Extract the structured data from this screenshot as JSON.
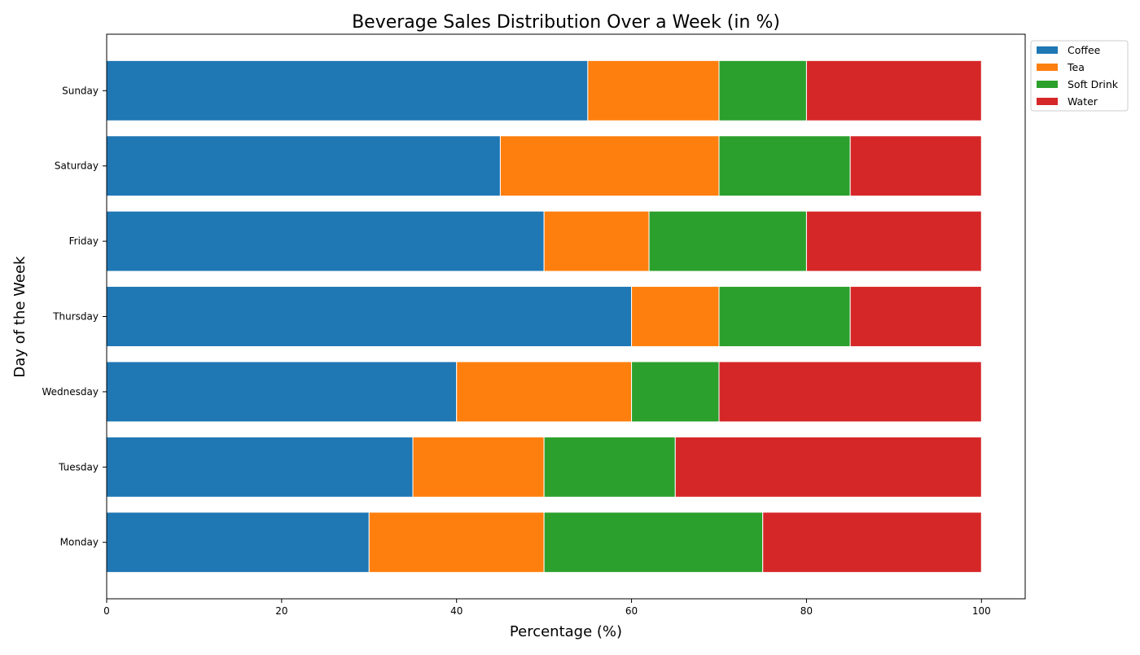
{
  "chart_data": {
    "type": "bar",
    "orientation": "horizontal",
    "stacked": true,
    "title": "Beverage Sales Distribution Over a Week (in %)",
    "xlabel": "Percentage (%)",
    "ylabel": "Day of the Week",
    "categories": [
      "Monday",
      "Tuesday",
      "Wednesday",
      "Thursday",
      "Friday",
      "Saturday",
      "Sunday"
    ],
    "series": [
      {
        "name": "Coffee",
        "color": "#1f77b4",
        "values": [
          30,
          35,
          40,
          60,
          50,
          45,
          55
        ]
      },
      {
        "name": "Tea",
        "color": "#ff7f0e",
        "values": [
          20,
          15,
          20,
          10,
          12,
          25,
          15
        ]
      },
      {
        "name": "Soft Drink",
        "color": "#2ca02c",
        "values": [
          25,
          15,
          10,
          15,
          18,
          15,
          10
        ]
      },
      {
        "name": "Water",
        "color": "#d62728",
        "values": [
          25,
          35,
          30,
          15,
          20,
          15,
          20
        ]
      }
    ],
    "xlim": [
      0,
      105
    ],
    "xticks": [
      "0",
      "20",
      "40",
      "60",
      "80",
      "100"
    ],
    "grid": false,
    "legend_position": "upper right, outside plot"
  }
}
